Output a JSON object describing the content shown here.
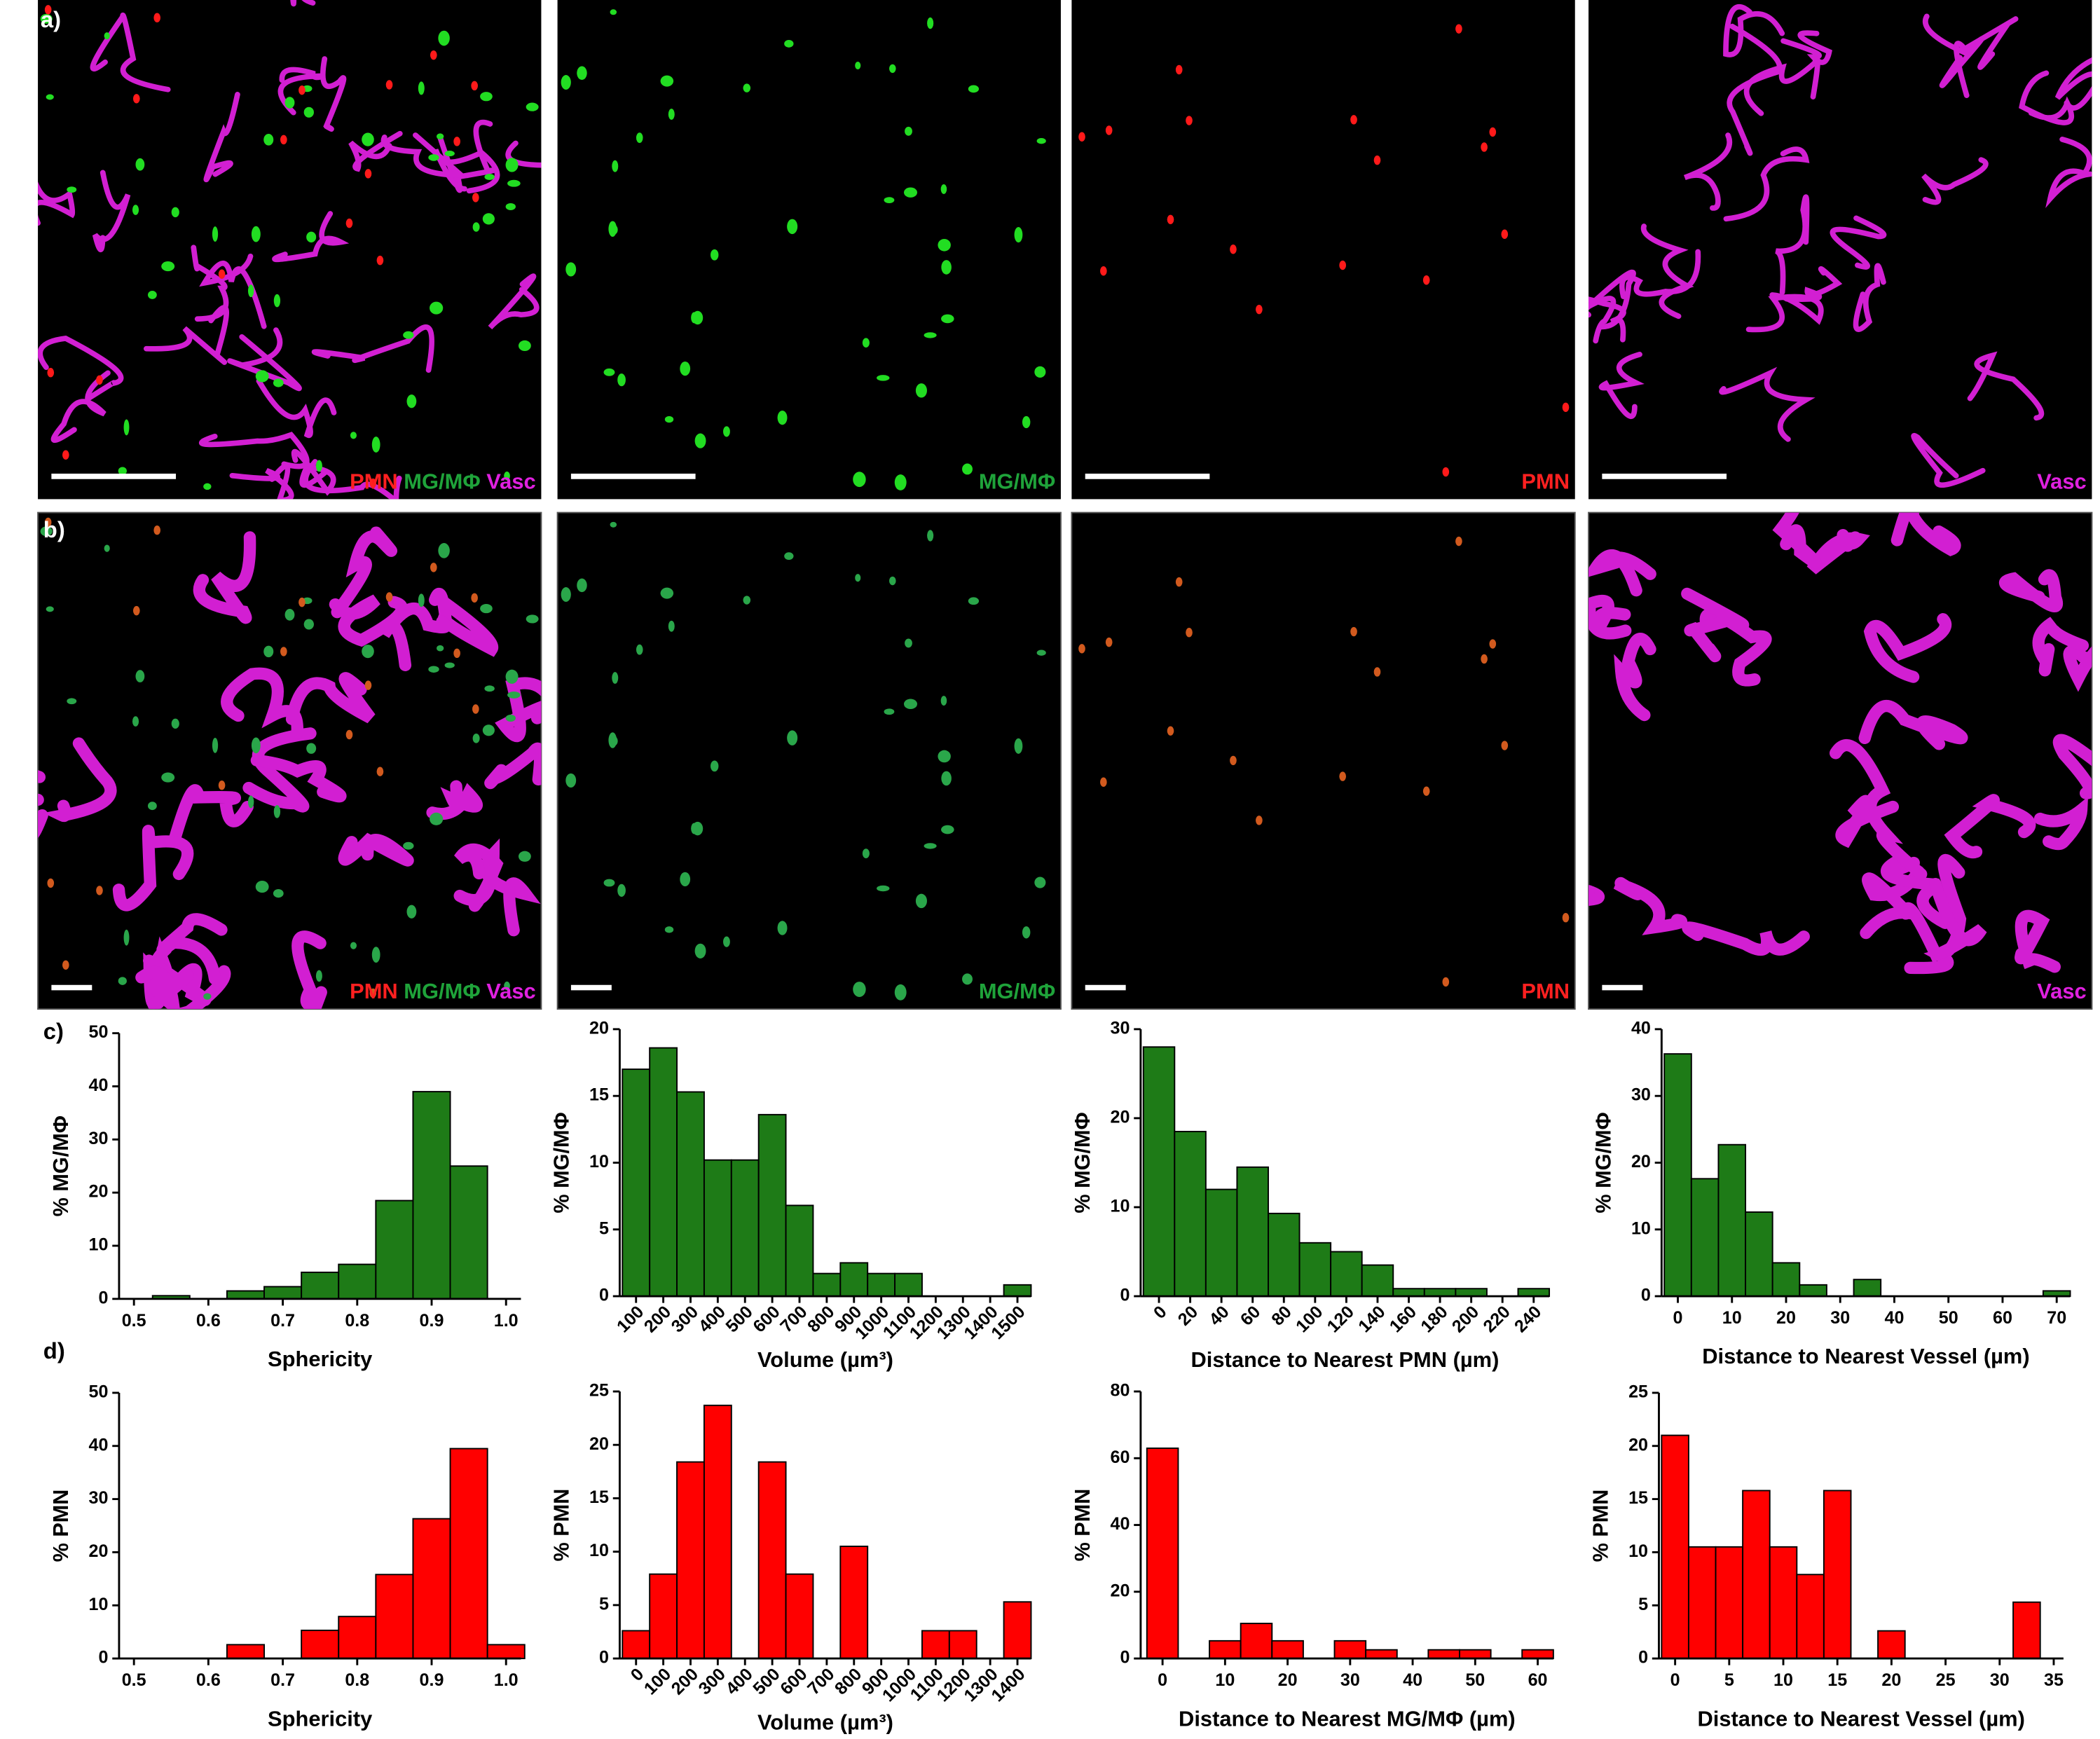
{
  "figure": {
    "panel_labels": [
      "a)",
      "b)",
      "c)",
      "d)"
    ],
    "channels": [
      "PMN",
      "MG/MΦ",
      "Vasc"
    ]
  },
  "chart_data": [
    {
      "type": "histogram",
      "xlabel": "Sphericity",
      "ylabel": "% MG/MΦ",
      "color": "#1e7b17",
      "bins": [
        0.525,
        0.575,
        0.625,
        0.675,
        0.725,
        0.775,
        0.825,
        0.875,
        0.925,
        0.975
      ],
      "values": [
        0.6,
        0,
        1.5,
        2.3,
        5,
        6.5,
        18.5,
        39,
        25
      ],
      "xlim": [
        0.48,
        1.02
      ],
      "xticks": [
        0.5,
        0.6,
        0.7,
        0.8,
        0.9,
        {
          "value": 1,
          "label": "1.0"
        }
      ],
      "ylim": [
        0,
        50
      ],
      "yticks": [
        0,
        10,
        20,
        30,
        40,
        50
      ]
    },
    {
      "type": "bar",
      "xlabel": "Volume (µm³)",
      "ylabel": "% MG/MΦ",
      "color": "#1e7b17",
      "categories": [
        "100",
        "200",
        "300",
        "400",
        "500",
        "600",
        "700",
        "800",
        "900",
        "1000",
        "1100",
        "1200",
        "1300",
        "1400",
        "1500"
      ],
      "values": [
        17,
        18.6,
        15.3,
        10.2,
        10.2,
        13.6,
        6.8,
        1.7,
        2.5,
        1.7,
        1.7,
        0,
        0,
        0,
        0.85
      ],
      "ylim": [
        0,
        20
      ],
      "yticks": [
        0,
        5,
        10,
        15,
        20
      ]
    },
    {
      "type": "bar",
      "xlabel": "Distance to Nearest PMN (µm)",
      "ylabel": "% MG/MΦ",
      "color": "#1e7b17",
      "categories": [
        "0",
        "20",
        "40",
        "60",
        "80",
        "100",
        "120",
        "140",
        "160",
        "180",
        "200",
        "220",
        "240"
      ],
      "values": [
        28,
        18.5,
        12,
        14.5,
        9.3,
        6,
        5,
        3.5,
        0.85,
        0.85,
        0.85,
        0,
        0.85
      ],
      "ylim": [
        0,
        30
      ],
      "yticks": [
        0,
        10,
        20,
        30
      ]
    },
    {
      "type": "histogram",
      "xlabel": "Distance to Nearest Vessel (µm)",
      "ylabel": "% MG/MΦ",
      "color": "#1e7b17",
      "bins": [
        -2.5,
        2.5,
        7.5,
        12.5,
        17.5,
        22.5,
        27.5,
        32.5,
        37.5,
        42.5,
        47.5,
        52.5,
        57.5,
        62.5,
        67.5,
        72.5
      ],
      "values": [
        36.3,
        17.6,
        22.7,
        12.6,
        5,
        1.7,
        0,
        2.5,
        0,
        0,
        0,
        0,
        0,
        0,
        0.8
      ],
      "xlim": [
        -3,
        72.5
      ],
      "xticks": [
        0,
        10,
        20,
        30,
        40,
        50,
        60,
        70
      ],
      "ylim": [
        0,
        40
      ],
      "yticks": [
        0,
        10,
        20,
        30,
        40
      ]
    },
    {
      "type": "histogram",
      "xlabel": "Sphericity",
      "ylabel": "% PMN",
      "color": "#ff0000",
      "bins": [
        0.525,
        0.575,
        0.625,
        0.675,
        0.725,
        0.775,
        0.825,
        0.875,
        0.925,
        0.975,
        1.025
      ],
      "values": [
        0,
        0,
        2.6,
        0,
        5.3,
        7.9,
        15.8,
        26.3,
        39.5,
        2.6
      ],
      "xlim": [
        0.48,
        1.02
      ],
      "xticks": [
        0.5,
        0.6,
        0.7,
        0.8,
        0.9,
        {
          "value": 1,
          "label": "1.0"
        }
      ],
      "ylim": [
        0,
        50
      ],
      "yticks": [
        0,
        10,
        20,
        30,
        40,
        50
      ]
    },
    {
      "type": "bar",
      "xlabel": "Volume (µm³)",
      "ylabel": "% PMN",
      "color": "#ff0000",
      "categories": [
        "0",
        "100",
        "200",
        "300",
        "400",
        "500",
        "600",
        "700",
        "800",
        "900",
        "1000",
        "1100",
        "1200",
        "1300",
        "1400"
      ],
      "values": [
        2.6,
        7.9,
        18.4,
        23.7,
        0,
        18.4,
        7.9,
        0,
        10.5,
        0,
        0,
        2.6,
        2.6,
        0,
        5.3
      ],
      "ylim": [
        0,
        25
      ],
      "yticks": [
        0,
        5,
        10,
        15,
        20,
        25
      ]
    },
    {
      "type": "histogram",
      "xlabel": "Distance to Nearest MG/MΦ (µm)",
      "ylabel": "% PMN",
      "color": "#ff0000",
      "bins": [
        -2.5,
        2.5,
        7.5,
        12.5,
        17.5,
        22.5,
        27.5,
        32.5,
        37.5,
        42.5,
        47.5,
        52.5,
        57.5,
        62.5
      ],
      "values": [
        63,
        0,
        5.3,
        10.5,
        5.3,
        0,
        5.3,
        2.6,
        0,
        2.6,
        2.6,
        0,
        2.6
      ],
      "xlim": [
        -3.5,
        62.5
      ],
      "xticks": [
        0,
        10,
        20,
        30,
        40,
        50,
        60
      ],
      "ylim": [
        0,
        80
      ],
      "yticks": [
        0,
        20,
        40,
        60,
        80
      ]
    },
    {
      "type": "histogram",
      "xlabel": "Distance to Nearest Vessel (µm)",
      "ylabel": "% PMN",
      "color": "#ff0000",
      "bins": [
        -1.25,
        1.25,
        3.75,
        6.25,
        8.75,
        11.25,
        13.75,
        16.25,
        18.75,
        21.25,
        23.75,
        26.25,
        28.75,
        31.25,
        33.75
      ],
      "values": [
        21,
        10.5,
        10.5,
        15.8,
        10.5,
        7.9,
        15.8,
        0,
        2.6,
        0,
        0,
        0,
        0,
        5.3
      ],
      "xlim": [
        -1.5,
        35.9
      ],
      "xticks": [
        0,
        5,
        10,
        15,
        20,
        25,
        30,
        35
      ],
      "ylim": [
        0,
        25
      ],
      "yticks": [
        0,
        5,
        10,
        15,
        20,
        25
      ]
    }
  ]
}
